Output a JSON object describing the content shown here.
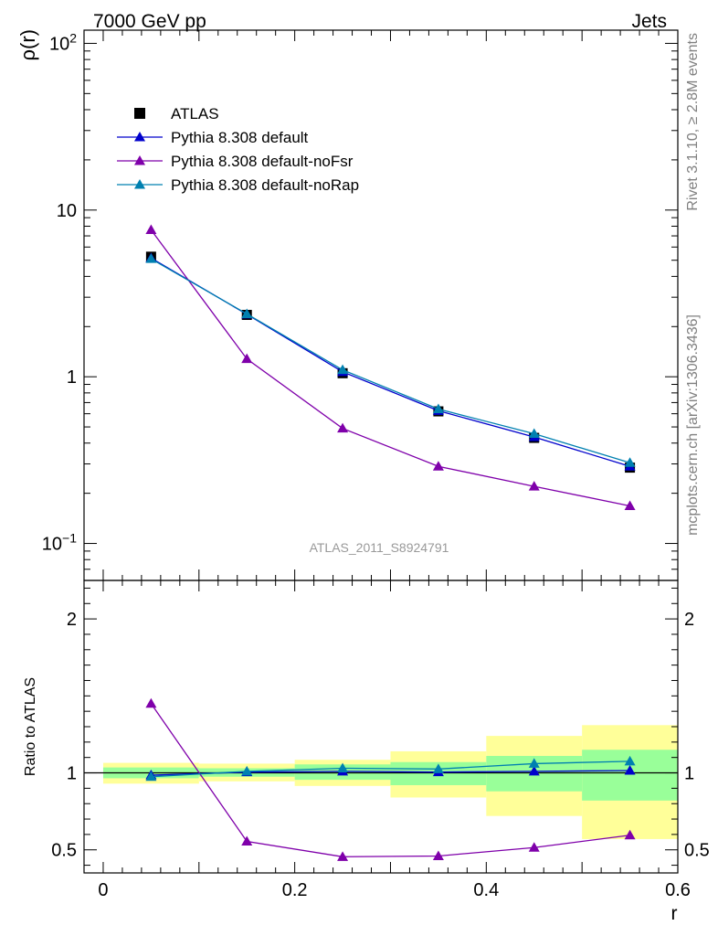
{
  "header": {
    "left_title": "7000 GeV pp",
    "right_title": "Jets"
  },
  "side_labels": {
    "rivet": "Rivet 3.1.10, ≥ 2.8M events",
    "source": "mcplots.cern.ch [arXiv:1306.3436]"
  },
  "analysis_label": "ATLAS_2011_S8924791",
  "colors": {
    "atlas": "#000000",
    "default": "#0000cc",
    "noFsr": "#7f00aa",
    "noRap": "#0080b0",
    "band_inner": "#99ff99",
    "band_outer": "#ffff99"
  },
  "chart_data": [
    {
      "type": "scatter",
      "panel": "main",
      "ylabel": "ρ(r)",
      "yscale": "log",
      "ylim": [
        0.06,
        120
      ],
      "xlim": [
        -0.02,
        0.6
      ],
      "y_ticks": [
        {
          "value": 0.1,
          "base": "10",
          "exp": "−1",
          "text": ""
        },
        {
          "value": 1,
          "base": "",
          "exp": "",
          "text": "1"
        },
        {
          "value": 10,
          "base": "",
          "exp": "",
          "text": "10"
        },
        {
          "value": 100,
          "base": "10",
          "exp": "2",
          "text": ""
        }
      ],
      "x": [
        0.05,
        0.15,
        0.25,
        0.35,
        0.45,
        0.55
      ],
      "series": [
        {
          "name": "ATLAS",
          "key": "atlas",
          "marker": "square",
          "values": [
            5.25,
            2.35,
            1.05,
            0.62,
            0.43,
            0.285
          ]
        },
        {
          "name": "Pythia 8.308 default",
          "key": "default",
          "marker": "triangle",
          "values": [
            5.15,
            2.37,
            1.07,
            0.625,
            0.435,
            0.29
          ]
        },
        {
          "name": "Pythia 8.308 default-noFsr",
          "key": "noFsr",
          "marker": "triangle",
          "values": [
            7.6,
            1.28,
            0.49,
            0.29,
            0.22,
            0.168
          ]
        },
        {
          "name": "Pythia 8.308 default-noRap",
          "key": "noRap",
          "marker": "triangle",
          "values": [
            5.1,
            2.38,
            1.1,
            0.64,
            0.455,
            0.305
          ]
        }
      ],
      "legend_position": "top-left"
    },
    {
      "type": "line",
      "panel": "ratio",
      "ylabel": "Ratio to ATLAS",
      "xlabel": "r",
      "ylim": [
        0.35,
        2.25
      ],
      "xlim": [
        -0.02,
        0.6
      ],
      "x_ticks": [
        "0",
        "0.2",
        "0.4",
        "0.6"
      ],
      "x_tick_values": [
        0,
        0.2,
        0.4,
        0.6
      ],
      "y_ticks": [
        "0.5",
        "1",
        "2"
      ],
      "y_tick_values": [
        0.5,
        1,
        2
      ],
      "bins": [
        [
          0,
          0.1
        ],
        [
          0.1,
          0.2
        ],
        [
          0.2,
          0.3
        ],
        [
          0.3,
          0.4
        ],
        [
          0.4,
          0.5
        ],
        [
          0.5,
          0.6
        ]
      ],
      "band_inner": [
        [
          0.965,
          1.035
        ],
        [
          0.975,
          1.03
        ],
        [
          0.955,
          1.055
        ],
        [
          0.92,
          1.07
        ],
        [
          0.88,
          1.11
        ],
        [
          0.82,
          1.15
        ]
      ],
      "band_outer": [
        [
          0.93,
          1.065
        ],
        [
          0.945,
          1.06
        ],
        [
          0.915,
          1.085
        ],
        [
          0.84,
          1.14
        ],
        [
          0.72,
          1.24
        ],
        [
          0.57,
          1.31
        ]
      ],
      "x": [
        0.05,
        0.15,
        0.25,
        0.35,
        0.45,
        0.55
      ],
      "series": [
        {
          "name": "Pythia 8.308 default",
          "key": "default",
          "values": [
            0.985,
            1.005,
            1.01,
            1.005,
            1.01,
            1.015
          ]
        },
        {
          "name": "Pythia 8.308 default-noFsr",
          "key": "noFsr",
          "values": [
            1.45,
            0.555,
            0.455,
            0.46,
            0.515,
            0.595
          ]
        },
        {
          "name": "Pythia 8.308 default-noRap",
          "key": "noRap",
          "values": [
            0.975,
            1.01,
            1.03,
            1.025,
            1.06,
            1.075
          ]
        }
      ]
    }
  ]
}
